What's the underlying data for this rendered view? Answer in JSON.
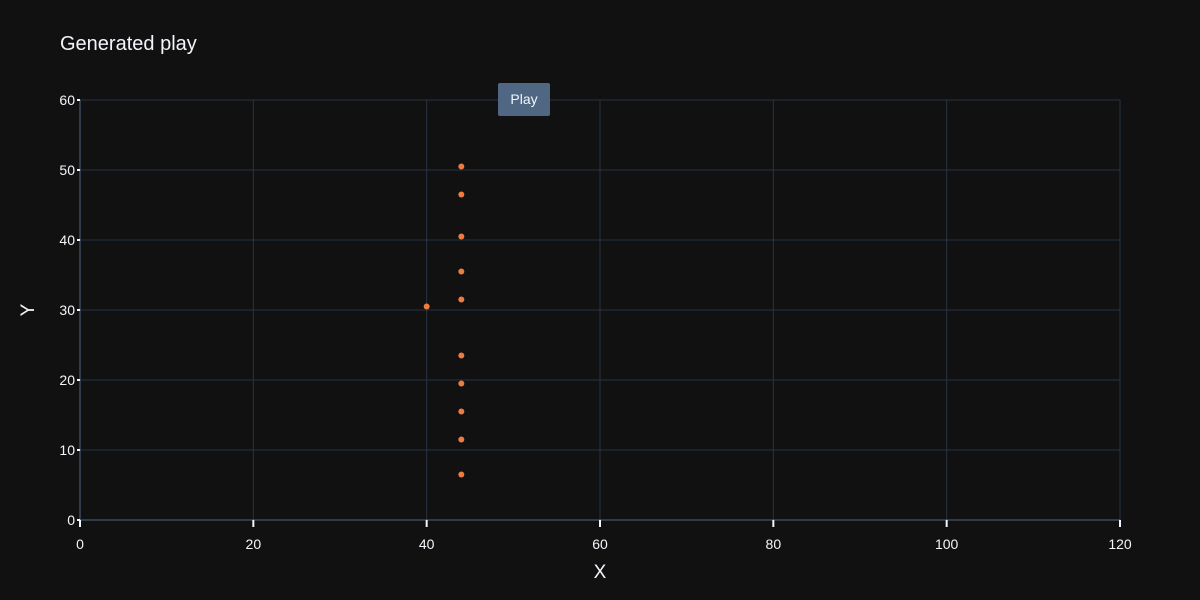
{
  "chart_data": {
    "type": "scatter",
    "title": "Generated play",
    "xlabel": "X",
    "ylabel": "Y",
    "xlim": [
      0,
      120
    ],
    "ylim": [
      0,
      60
    ],
    "xticks": [
      0,
      20,
      40,
      60,
      80,
      100,
      120
    ],
    "yticks": [
      0,
      10,
      20,
      30,
      40,
      50,
      60
    ],
    "grid": true,
    "series": [
      {
        "color": "#ef7b3e",
        "points": [
          {
            "x": 44,
            "y": 50.5
          },
          {
            "x": 44,
            "y": 46.5
          },
          {
            "x": 44,
            "y": 40.5
          },
          {
            "x": 44,
            "y": 35.5
          },
          {
            "x": 44,
            "y": 31.5
          },
          {
            "x": 40,
            "y": 30.5
          },
          {
            "x": 44,
            "y": 23.5
          },
          {
            "x": 44,
            "y": 19.5
          },
          {
            "x": 44,
            "y": 15.5
          },
          {
            "x": 44,
            "y": 11.5
          },
          {
            "x": 44,
            "y": 6.5
          }
        ]
      }
    ]
  },
  "controls": {
    "play_label": "Play"
  },
  "colors": {
    "background": "#111111",
    "grid": "#283442",
    "axis_line": "#506784",
    "text": "#f2f5fa",
    "button": "#506784",
    "marker": "#ef7b3e"
  }
}
